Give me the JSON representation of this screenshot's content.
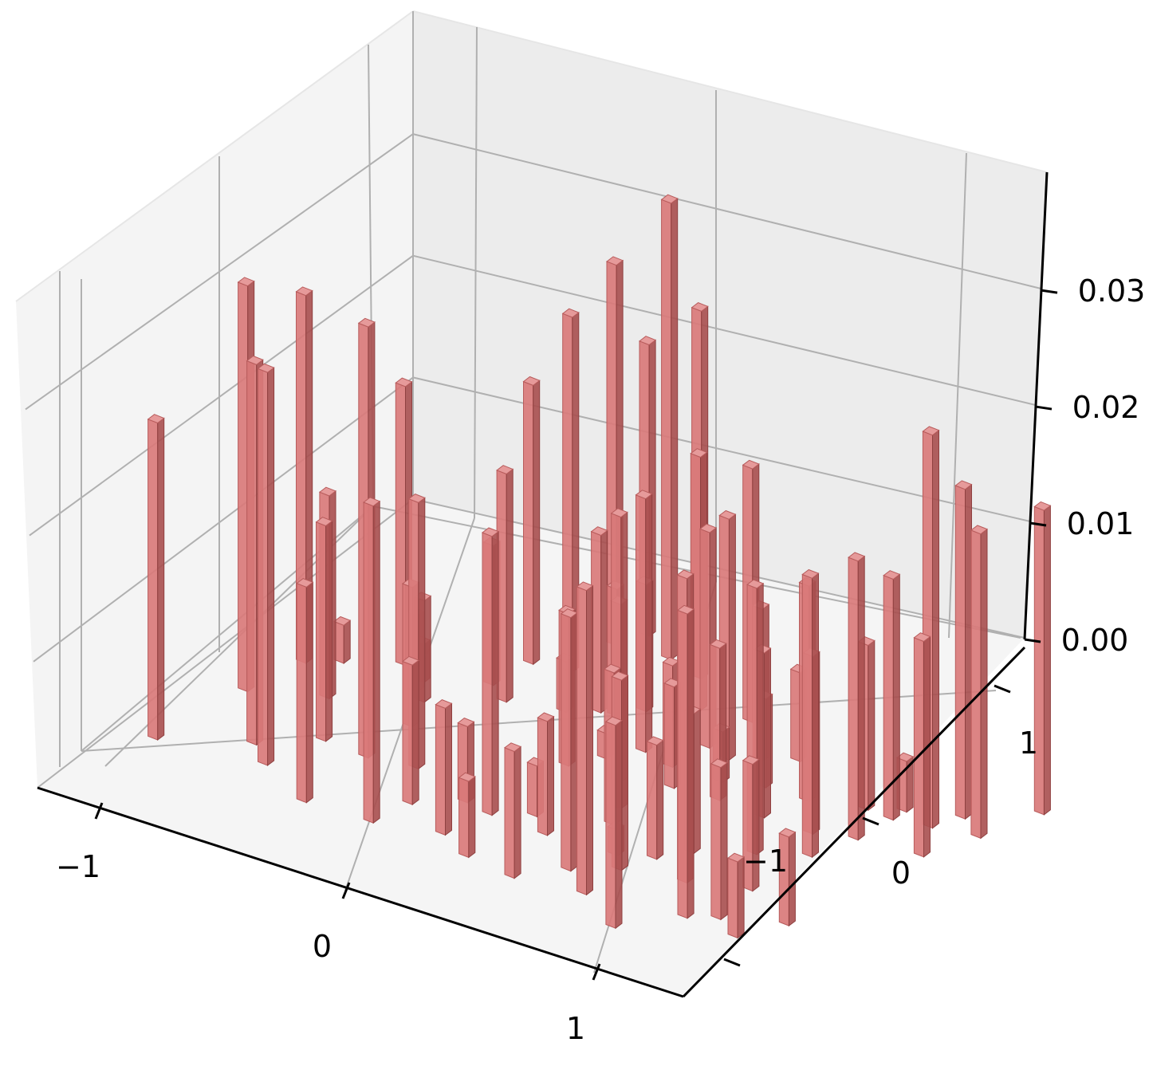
{
  "chart_data": {
    "type": "bar3d",
    "title": "",
    "xlabel": "",
    "ylabel": "",
    "zlabel": "",
    "xlim": [
      -1.3,
      1.3
    ],
    "ylim": [
      -1.3,
      1.3
    ],
    "zlim": [
      0,
      0.04
    ],
    "x_ticks": [
      -1,
      0,
      1
    ],
    "y_ticks": [
      -1,
      0,
      1
    ],
    "z_ticks": [
      0.0,
      0.01,
      0.02,
      0.03
    ],
    "x_tick_labels": [
      "−1",
      "0",
      "1"
    ],
    "y_tick_labels": [
      "−1",
      "0",
      "1"
    ],
    "z_tick_labels": [
      "0.00",
      "0.01",
      "0.02",
      "0.03"
    ],
    "grid": true,
    "colors": {
      "bar": "#d97a7a",
      "pane": "#f2f2f2",
      "grid": "#b0b0b0"
    },
    "bars": [
      {
        "x": -1.14,
        "y": -1.02,
        "z": 0.025
      },
      {
        "x": -0.78,
        "y": -0.79,
        "z": 0.03
      },
      {
        "x": -0.65,
        "y": -0.9,
        "z": 0.031
      },
      {
        "x": -0.35,
        "y": -1.05,
        "z": 0.017
      },
      {
        "x": -0.56,
        "y": -0.58,
        "z": 0.017
      },
      {
        "x": -0.34,
        "y": -0.58,
        "z": 0.034
      },
      {
        "x": -0.03,
        "y": -1.01,
        "z": 0.025
      },
      {
        "x": -0.12,
        "y": -0.52,
        "z": 0.021
      },
      {
        "x": 0.02,
        "y": -0.78,
        "z": 0.011
      },
      {
        "x": 0.2,
        "y": -0.62,
        "z": 0.006
      },
      {
        "x": 0.34,
        "y": -0.64,
        "z": 0.022
      },
      {
        "x": 0.27,
        "y": -0.9,
        "z": 0.01
      },
      {
        "x": 0.45,
        "y": -0.99,
        "z": 0.006
      },
      {
        "x": 0.5,
        "y": -0.53,
        "z": 0.004
      },
      {
        "x": 0.62,
        "y": -0.63,
        "z": 0.009
      },
      {
        "x": 0.86,
        "y": -0.81,
        "z": 0.02
      },
      {
        "x": 0.7,
        "y": -1.01,
        "z": 0.01
      },
      {
        "x": 0.95,
        "y": -0.58,
        "z": 0.002
      },
      {
        "x": 1.02,
        "y": -0.93,
        "z": 0.024
      },
      {
        "x": 0.8,
        "y": -0.38,
        "z": 0.012
      },
      {
        "x": 0.75,
        "y": -0.25,
        "z": 0.023
      },
      {
        "x": 1.27,
        "y": -1.08,
        "z": 0.016
      },
      {
        "x": 1.03,
        "y": -0.67,
        "z": 0.015
      },
      {
        "x": 1.1,
        "y": -0.5,
        "z": 0.009
      },
      {
        "x": 1.31,
        "y": -0.58,
        "z": 0.024
      },
      {
        "x": 1.2,
        "y": -0.36,
        "z": 0.011
      },
      {
        "x": 1.47,
        "y": -0.82,
        "z": 0.024
      },
      {
        "x": 1.59,
        "y": -0.74,
        "z": 0.012
      },
      {
        "x": 1.73,
        "y": -0.82,
        "z": 0.006
      },
      {
        "x": 1.57,
        "y": -0.46,
        "z": 0.01
      },
      {
        "x": 1.42,
        "y": -0.2,
        "z": 0.021
      },
      {
        "x": 1.85,
        "y": -0.6,
        "z": 0.007
      },
      {
        "x": -1.05,
        "y": -0.45,
        "z": 0.032
      },
      {
        "x": -0.74,
        "y": -0.28,
        "z": 0.016
      },
      {
        "x": -0.98,
        "y": -0.1,
        "z": 0.029
      },
      {
        "x": -0.85,
        "y": 0.0,
        "z": 0.003
      },
      {
        "x": -0.47,
        "y": 0.0,
        "z": 0.006
      },
      {
        "x": -0.63,
        "y": 0.15,
        "z": 0.022
      },
      {
        "x": -0.49,
        "y": 0.08,
        "z": 0.003
      },
      {
        "x": -0.4,
        "y": -0.05,
        "z": 0.008
      },
      {
        "x": -0.33,
        "y": -0.25,
        "z": 0.011
      },
      {
        "x": -0.24,
        "y": 0.25,
        "z": 0.011
      },
      {
        "x": -0.12,
        "y": 0.17,
        "z": 0.018
      },
      {
        "x": -0.2,
        "y": 0.5,
        "z": 0.022
      },
      {
        "x": -0.03,
        "y": 0.55,
        "z": 0.028
      },
      {
        "x": 0.25,
        "y": 0.35,
        "z": 0.014
      },
      {
        "x": 0.4,
        "y": 0.48,
        "z": 0.01
      },
      {
        "x": 0.0,
        "y": 0.85,
        "z": 0.03
      },
      {
        "x": 0.07,
        "y": 1.0,
        "z": 0.023
      },
      {
        "x": 0.25,
        "y": 0.9,
        "z": 0.036
      },
      {
        "x": 0.44,
        "y": 0.85,
        "z": 0.029
      },
      {
        "x": 0.32,
        "y": 0.37,
        "z": 0.01
      },
      {
        "x": 0.13,
        "y": 0.26,
        "z": 0.004
      },
      {
        "x": 0.58,
        "y": 0.2,
        "z": 0.02
      },
      {
        "x": 0.48,
        "y": 0.05,
        "z": 0.002
      },
      {
        "x": 0.38,
        "y": -0.1,
        "z": 0.012
      },
      {
        "x": 0.63,
        "y": -0.07,
        "z": 0.014
      },
      {
        "x": 0.74,
        "y": 0.17,
        "z": 0.008
      },
      {
        "x": 0.78,
        "y": 0.4,
        "z": 0.017
      },
      {
        "x": 0.9,
        "y": 0.37,
        "z": 0.019
      },
      {
        "x": 0.98,
        "y": 0.2,
        "z": 0.004
      },
      {
        "x": 0.84,
        "y": 0.03,
        "z": 0.008
      },
      {
        "x": 1.02,
        "y": 0.45,
        "z": 0.012
      },
      {
        "x": 1.15,
        "y": 0.28,
        "z": 0.007
      },
      {
        "x": 1.05,
        "y": 0.07,
        "z": 0.012
      },
      {
        "x": 1.28,
        "y": 0.07,
        "z": 0.013
      },
      {
        "x": 1.15,
        "y": 0.55,
        "z": 0.007
      },
      {
        "x": 1.36,
        "y": 0.3,
        "z": 0.017
      },
      {
        "x": 1.52,
        "y": 0.09,
        "z": 0.014
      },
      {
        "x": 1.6,
        "y": 0.4,
        "z": 0.013
      },
      {
        "x": 1.62,
        "y": -0.07,
        "z": 0.022
      },
      {
        "x": 1.7,
        "y": 0.17,
        "z": 0.022
      },
      {
        "x": 1.73,
        "y": 0.4,
        "z": 0.019
      },
      {
        "x": 1.74,
        "y": 0.49,
        "z": 0.004
      },
      {
        "x": 1.9,
        "y": 0.45,
        "z": 0.031
      },
      {
        "x": 1.97,
        "y": 0.6,
        "z": 0.026
      },
      {
        "x": 2.11,
        "y": 0.51,
        "z": 0.024
      },
      {
        "x": 2.22,
        "y": 0.84,
        "z": 0.024
      },
      {
        "x": 2.0,
        "y": 0.23,
        "z": 0.017
      },
      {
        "x": 0.81,
        "y": 0.69,
        "z": 0.02
      },
      {
        "x": 0.58,
        "y": 0.63,
        "z": 0.02
      }
    ]
  }
}
